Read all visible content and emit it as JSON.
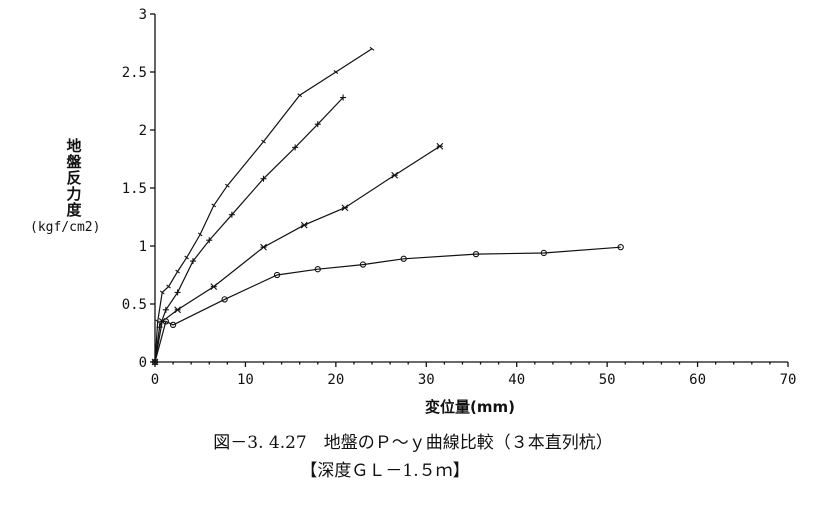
{
  "chart_data": {
    "type": "line",
    "title": "図－3. 4.27　地盤のＰ～ｙ曲線比較（３本直列杭）",
    "subtitle": "【深度ＧＬ－1.５ｍ】",
    "xlabel": "変位量(mm)",
    "ylabel": "地盤反力度",
    "ylabel_unit": "(kgf/cm2)",
    "xlim": [
      0,
      70
    ],
    "ylim": [
      0,
      3
    ],
    "x_ticks": [
      "0",
      "10",
      "20",
      "30",
      "40",
      "50",
      "60",
      "70"
    ],
    "y_ticks": [
      "0",
      "0.5",
      "1",
      "1.5",
      "2",
      "2.5",
      "3"
    ],
    "grid": false,
    "series": [
      {
        "marker": "dash",
        "x": [
          0,
          0.3,
          0.8,
          1.5,
          2.5,
          3.5,
          5,
          6.5,
          8,
          12,
          16,
          20,
          24
        ],
        "y": [
          0,
          0.35,
          0.6,
          0.65,
          0.78,
          0.9,
          1.1,
          1.35,
          1.52,
          1.9,
          2.3,
          2.5,
          2.7
        ]
      },
      {
        "marker": "plus",
        "x": [
          0,
          0.5,
          1.2,
          2.5,
          4.2,
          6,
          8.5,
          12,
          15.5,
          18,
          20.8
        ],
        "y": [
          0,
          0.3,
          0.45,
          0.6,
          0.87,
          1.05,
          1.27,
          1.58,
          1.85,
          2.05,
          2.28
        ]
      },
      {
        "marker": "x",
        "x": [
          0,
          0.8,
          2.5,
          6.5,
          12,
          16.5,
          21,
          26.5,
          31.5
        ],
        "y": [
          0,
          0.35,
          0.45,
          0.65,
          0.99,
          1.18,
          1.33,
          1.61,
          1.86
        ]
      },
      {
        "marker": "circle",
        "x": [
          0,
          1.2,
          2,
          7.7,
          13.5,
          18,
          23,
          27.5,
          35.5,
          43,
          51.5
        ],
        "y": [
          0,
          0.35,
          0.32,
          0.54,
          0.75,
          0.8,
          0.84,
          0.89,
          0.93,
          0.94,
          0.99
        ]
      }
    ]
  }
}
